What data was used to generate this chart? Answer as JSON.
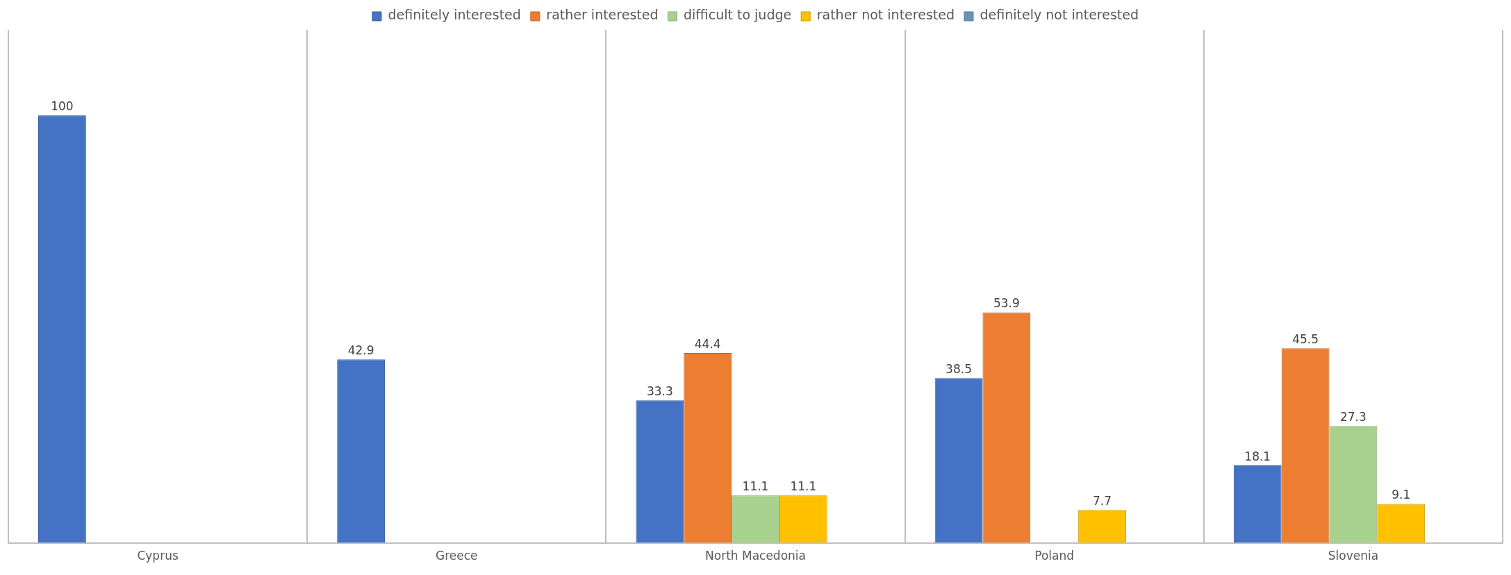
{
  "chart_data": {
    "type": "bar",
    "categories": [
      "Cyprus",
      "Greece",
      "North Macedonia",
      "Poland",
      "Slovenia"
    ],
    "series": [
      {
        "name": "definitely interested",
        "color": "#4472c4",
        "values": [
          100,
          42.9,
          33.3,
          38.5,
          18.1
        ]
      },
      {
        "name": "rather interested",
        "color": "#ed7d31",
        "values": [
          null,
          null,
          44.4,
          53.9,
          45.5
        ]
      },
      {
        "name": "difficult to judge",
        "color": "#a9d18e",
        "values": [
          null,
          null,
          11.1,
          null,
          27.3
        ]
      },
      {
        "name": "rather not interested",
        "color": "#ffc000",
        "values": [
          null,
          null,
          11.1,
          7.7,
          9.1
        ]
      },
      {
        "name": "definitely not interested",
        "color": "#6a93b8",
        "values": [
          null,
          null,
          null,
          null,
          null
        ]
      }
    ],
    "data_labels": true,
    "grid": "x",
    "legend": "top",
    "tick_labels": "x"
  }
}
